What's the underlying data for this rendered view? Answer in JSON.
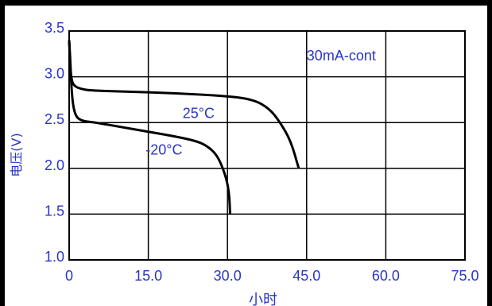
{
  "chart_data": {
    "type": "line",
    "title": "",
    "xlabel": "小时",
    "ylabel": "电压(V)",
    "xlim": [
      0,
      75
    ],
    "ylim": [
      1.0,
      3.5
    ],
    "x_ticks": [
      0,
      15,
      30,
      45,
      60,
      75
    ],
    "x_tick_labels": [
      "0",
      "15.0",
      "30.0",
      "45.0",
      "60.0",
      "75.0"
    ],
    "y_ticks": [
      1.0,
      1.5,
      2.0,
      2.5,
      3.0,
      3.5
    ],
    "y_tick_labels": [
      "1.0",
      "1.5",
      "2.0",
      "2.5",
      "3.0",
      "3.5"
    ],
    "grid": true,
    "legend": "none",
    "annotations": [
      {
        "text": "30mA-cont",
        "x": 45,
        "y": 3.18
      },
      {
        "text": "25°C",
        "x": 21.5,
        "y": 2.55
      },
      {
        "text": "-20°C",
        "x": 14.5,
        "y": 2.15
      }
    ],
    "series": [
      {
        "label": "25°C",
        "color": "#000000",
        "points": [
          [
            0,
            3.4
          ],
          [
            0.2,
            3.1
          ],
          [
            0.5,
            2.95
          ],
          [
            1,
            2.9
          ],
          [
            2,
            2.87
          ],
          [
            4,
            2.85
          ],
          [
            10,
            2.84
          ],
          [
            20,
            2.82
          ],
          [
            30,
            2.79
          ],
          [
            35,
            2.75
          ],
          [
            38,
            2.65
          ],
          [
            40,
            2.5
          ],
          [
            42,
            2.3
          ],
          [
            43.5,
            2.0
          ]
        ]
      },
      {
        "label": "-20°C",
        "color": "#000000",
        "points": [
          [
            0,
            3.4
          ],
          [
            0.2,
            3.2
          ],
          [
            0.5,
            2.8
          ],
          [
            1,
            2.6
          ],
          [
            2,
            2.52
          ],
          [
            5,
            2.5
          ],
          [
            10,
            2.45
          ],
          [
            15,
            2.4
          ],
          [
            20,
            2.35
          ],
          [
            24,
            2.3
          ],
          [
            26,
            2.25
          ],
          [
            28,
            2.15
          ],
          [
            29.5,
            1.95
          ],
          [
            30.3,
            1.75
          ],
          [
            30.5,
            1.5
          ]
        ]
      }
    ]
  }
}
